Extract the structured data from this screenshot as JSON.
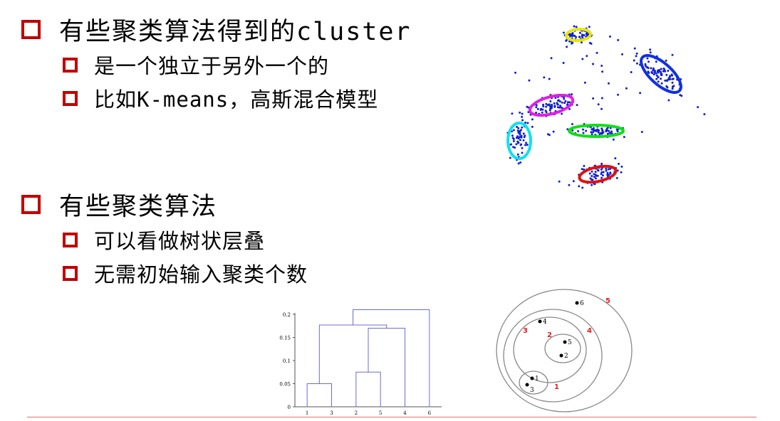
{
  "bullets": [
    {
      "level": 1,
      "text": "有些聚类算法得到的cluster"
    },
    {
      "level": 2,
      "text": "是一个独立于另外一个的"
    },
    {
      "level": 2,
      "text": "比如K-means，高斯混合模型"
    },
    {
      "level": 1,
      "text": "有些聚类算法"
    },
    {
      "level": 2,
      "text": "可以看做树状层叠"
    },
    {
      "level": 2,
      "text": "无需初始输入聚类个数"
    }
  ],
  "dendrogram": {
    "y_ticks": [
      "0",
      "0.05",
      "0.1",
      "0.15",
      "0.2"
    ],
    "y_values": [
      0,
      0.05,
      0.1,
      0.15,
      0.2
    ],
    "leaves": [
      "1",
      "3",
      "2",
      "5",
      "4",
      "6"
    ],
    "line_color": "#6b6bd6",
    "merges": [
      {
        "left": "1",
        "right": "3",
        "height": 0.05
      },
      {
        "left": "2",
        "right": "5",
        "height": 0.075
      },
      {
        "left": "2-5",
        "right": "4",
        "height": 0.17
      },
      {
        "left": "1-3",
        "right": "2-5-4",
        "height": 0.177
      },
      {
        "left": "1-3-2-5-4",
        "right": "6",
        "height": 0.21
      }
    ]
  },
  "nested_clusters": {
    "points": [
      "1",
      "2",
      "3",
      "4",
      "5",
      "6"
    ],
    "cluster_labels": [
      "1",
      "2",
      "3",
      "4",
      "5"
    ],
    "label_color": "#e02020"
  },
  "scatter_ellipse_colors": [
    "#e8e800",
    "#1030e0",
    "#e020e0",
    "#10e010",
    "#10e0f0",
    "#e01010"
  ],
  "scatter_point_color": "#1020d0",
  "bullet_box_color": "#c00000"
}
